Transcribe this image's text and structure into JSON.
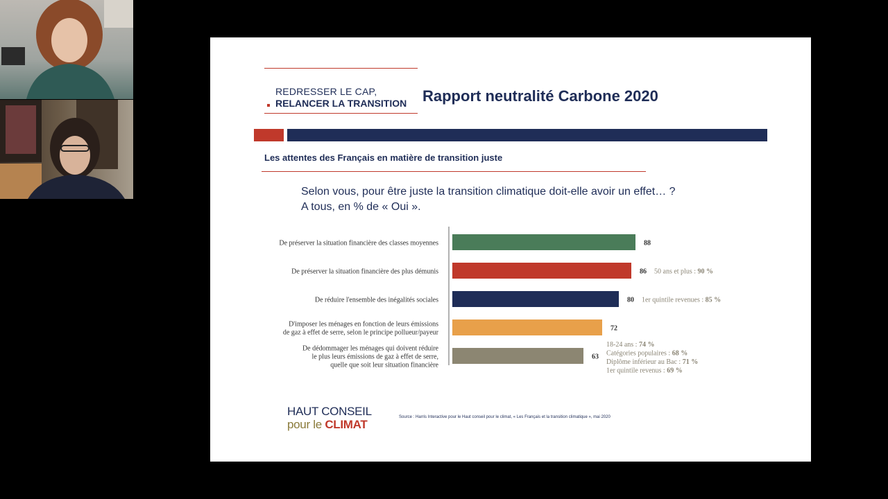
{
  "slide": {
    "brand_line1": "REDRESSER LE CAP,",
    "brand_line2": "RELANCER LA TRANSITION",
    "title": "Rapport neutralité Carbone 2020",
    "subtitle": "Les attentes des Français en matière de transition juste",
    "question_line1": "Selon vous, pour être juste la transition climatique doit-elle avoir un effet… ?",
    "question_line2": "A tous, en % de « Oui ».",
    "logo_line1": "HAUT CONSEIL",
    "logo_line2_a": "pour le ",
    "logo_line2_b": "CLIMAT",
    "source": "Source : Harris Interactive pour le Haut conseil pour le climat, « Les Français et la transition climatique », mai 2020"
  },
  "chart_data": {
    "type": "bar",
    "orientation": "horizontal",
    "categories": [
      [
        "De préserver la situation financière des classes moyennes"
      ],
      [
        "De préserver la situation financière des plus démunis"
      ],
      [
        "De réduire l'ensemble des inégalités sociales"
      ],
      [
        "D'imposer les ménages en fonction de leurs émissions",
        "de gaz à effet de serre, selon le principe pollueur/payeur"
      ],
      [
        "De dédommager les ménages qui doivent réduire",
        "le plus leurs émissions de gaz à effet de serre,",
        "quelle que soit leur situation financière"
      ]
    ],
    "values": [
      88,
      86,
      80,
      72,
      63
    ],
    "colors": [
      "#4a7c59",
      "#c0392b",
      "#1f2d57",
      "#e8a04a",
      "#8c8672"
    ],
    "xlim": [
      0,
      100
    ],
    "annotations": [
      [],
      [
        "50 ans et plus : ",
        "90 %"
      ],
      [
        "1er quintile revenues : ",
        "85 %"
      ],
      [],
      [
        "18-24 ans : ",
        "74 %",
        "Catégories populaires : ",
        "68 %",
        "Diplôme inférieur au Bac : ",
        "71 %",
        "1er quintile revenus : ",
        "69 %"
      ]
    ]
  }
}
